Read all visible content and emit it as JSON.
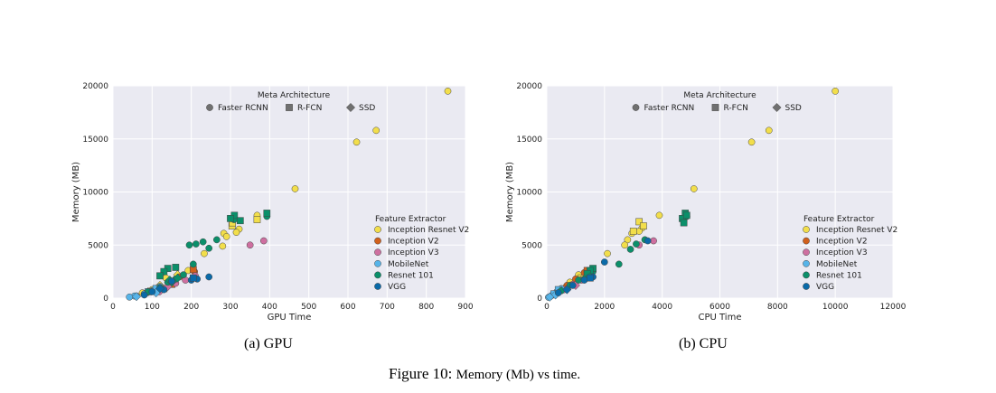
{
  "colors": {
    "panel_bg": "#EAEAF2",
    "grid": "#FFFFFF",
    "Inception Resnet V2": "#F2DE4B",
    "Inception V2": "#D1601C",
    "Inception V3": "#CE6FA0",
    "MobileNet": "#56B4E9",
    "Resnet 101": "#0B8F6A",
    "VGG": "#0A6AA8",
    "meta_marker_gray": "#707070"
  },
  "captions": {
    "a": "(a) GPU",
    "b": "(b) CPU",
    "figure_prefix": "Figure 10:",
    "figure_text": "Memory (Mb) vs time."
  },
  "chart_data": [
    {
      "type": "scatter",
      "panel": "gpu",
      "xlabel": "GPU Time",
      "ylabel": "Memory (MB)",
      "xlim": [
        0,
        900
      ],
      "ylim": [
        0,
        20000
      ],
      "xticks": [
        0,
        100,
        200,
        300,
        400,
        500,
        600,
        700,
        800,
        900
      ],
      "yticks": [
        0,
        5000,
        10000,
        15000,
        20000
      ],
      "grid": true,
      "meta_legend": {
        "title": "Meta Architecture",
        "placement": "top-center",
        "entries": [
          {
            "label": "Faster RCNN",
            "marker": "circle"
          },
          {
            "label": "R-FCN",
            "marker": "square"
          },
          {
            "label": "SSD",
            "marker": "diamond"
          }
        ]
      },
      "feature_legend": {
        "title": "Feature Extractor",
        "placement": "right",
        "entries": [
          "Inception Resnet V2",
          "Inception V2",
          "Inception V3",
          "MobileNet",
          "Resnet 101",
          "VGG"
        ]
      },
      "series": [
        {
          "name": "Inception Resnet V2",
          "points": [
            {
              "x": 855,
              "y": 19500,
              "m": "circle"
            },
            {
              "x": 672,
              "y": 15800,
              "m": "circle"
            },
            {
              "x": 622,
              "y": 14700,
              "m": "circle"
            },
            {
              "x": 465,
              "y": 10300,
              "m": "circle"
            },
            {
              "x": 368,
              "y": 7800,
              "m": "circle"
            },
            {
              "x": 322,
              "y": 6500,
              "m": "circle"
            },
            {
              "x": 315,
              "y": 6200,
              "m": "circle"
            },
            {
              "x": 283,
              "y": 6100,
              "m": "circle"
            },
            {
              "x": 290,
              "y": 5800,
              "m": "circle"
            },
            {
              "x": 280,
              "y": 4900,
              "m": "circle"
            },
            {
              "x": 233,
              "y": 4200,
              "m": "circle"
            },
            {
              "x": 192,
              "y": 2600,
              "m": "circle"
            },
            {
              "x": 135,
              "y": 1900,
              "m": "circle"
            },
            {
              "x": 100,
              "y": 800,
              "m": "circle"
            },
            {
              "x": 75,
              "y": 500,
              "m": "circle"
            },
            {
              "x": 304,
              "y": 6800,
              "m": "square"
            },
            {
              "x": 368,
              "y": 7400,
              "m": "square"
            },
            {
              "x": 305,
              "y": 7100,
              "m": "square"
            },
            {
              "x": 150,
              "y": 1500,
              "m": "square"
            },
            {
              "x": 130,
              "y": 900,
              "m": "square"
            },
            {
              "x": 165,
              "y": 2200,
              "m": "diamond"
            },
            {
              "x": 120,
              "y": 1200,
              "m": "diamond"
            }
          ]
        },
        {
          "name": "Inception V2",
          "points": [
            {
              "x": 208,
              "y": 2500,
              "m": "circle"
            },
            {
              "x": 170,
              "y": 2000,
              "m": "circle"
            },
            {
              "x": 140,
              "y": 1500,
              "m": "circle"
            },
            {
              "x": 100,
              "y": 700,
              "m": "circle"
            },
            {
              "x": 80,
              "y": 400,
              "m": "circle"
            },
            {
              "x": 60,
              "y": 200,
              "m": "circle"
            },
            {
              "x": 205,
              "y": 2700,
              "m": "square"
            },
            {
              "x": 150,
              "y": 1300,
              "m": "square"
            },
            {
              "x": 90,
              "y": 600,
              "m": "diamond"
            }
          ]
        },
        {
          "name": "Inception V3",
          "points": [
            {
              "x": 385,
              "y": 5400,
              "m": "circle"
            },
            {
              "x": 350,
              "y": 5000,
              "m": "circle"
            },
            {
              "x": 210,
              "y": 2100,
              "m": "circle"
            },
            {
              "x": 185,
              "y": 1700,
              "m": "circle"
            },
            {
              "x": 160,
              "y": 1400,
              "m": "circle"
            },
            {
              "x": 130,
              "y": 900,
              "m": "circle"
            },
            {
              "x": 118,
              "y": 600,
              "m": "circle"
            },
            {
              "x": 140,
              "y": 1100,
              "m": "diamond"
            }
          ]
        },
        {
          "name": "MobileNet",
          "points": [
            {
              "x": 120,
              "y": 1100,
              "m": "circle"
            },
            {
              "x": 100,
              "y": 700,
              "m": "circle"
            },
            {
              "x": 80,
              "y": 400,
              "m": "circle"
            },
            {
              "x": 55,
              "y": 200,
              "m": "circle"
            },
            {
              "x": 42,
              "y": 100,
              "m": "circle"
            },
            {
              "x": 110,
              "y": 900,
              "m": "square"
            },
            {
              "x": 90,
              "y": 600,
              "m": "square"
            },
            {
              "x": 110,
              "y": 500,
              "m": "diamond"
            },
            {
              "x": 60,
              "y": 150,
              "m": "diamond"
            }
          ]
        },
        {
          "name": "Resnet 101",
          "points": [
            {
              "x": 393,
              "y": 7700,
              "m": "circle"
            },
            {
              "x": 309,
              "y": 7400,
              "m": "circle"
            },
            {
              "x": 265,
              "y": 5500,
              "m": "circle"
            },
            {
              "x": 245,
              "y": 4700,
              "m": "circle"
            },
            {
              "x": 230,
              "y": 5300,
              "m": "circle"
            },
            {
              "x": 212,
              "y": 5100,
              "m": "circle"
            },
            {
              "x": 195,
              "y": 5000,
              "m": "circle"
            },
            {
              "x": 205,
              "y": 3200,
              "m": "circle"
            },
            {
              "x": 180,
              "y": 2200,
              "m": "circle"
            },
            {
              "x": 160,
              "y": 1800,
              "m": "circle"
            },
            {
              "x": 140,
              "y": 1500,
              "m": "circle"
            },
            {
              "x": 120,
              "y": 1000,
              "m": "circle"
            },
            {
              "x": 90,
              "y": 600,
              "m": "circle"
            },
            {
              "x": 310,
              "y": 7800,
              "m": "square"
            },
            {
              "x": 325,
              "y": 7300,
              "m": "square"
            },
            {
              "x": 393,
              "y": 8000,
              "m": "square"
            },
            {
              "x": 300,
              "y": 7500,
              "m": "square"
            },
            {
              "x": 160,
              "y": 2900,
              "m": "square"
            },
            {
              "x": 140,
              "y": 2800,
              "m": "square"
            },
            {
              "x": 130,
              "y": 2500,
              "m": "square"
            },
            {
              "x": 120,
              "y": 2100,
              "m": "square"
            },
            {
              "x": 165,
              "y": 1900,
              "m": "diamond"
            },
            {
              "x": 150,
              "y": 1500,
              "m": "diamond"
            },
            {
              "x": 145,
              "y": 1700,
              "m": "diamond"
            }
          ]
        },
        {
          "name": "VGG",
          "points": [
            {
              "x": 245,
              "y": 2000,
              "m": "circle"
            },
            {
              "x": 215,
              "y": 1800,
              "m": "circle"
            },
            {
              "x": 200,
              "y": 1700,
              "m": "circle"
            },
            {
              "x": 150,
              "y": 1600,
              "m": "circle"
            },
            {
              "x": 130,
              "y": 800,
              "m": "circle"
            },
            {
              "x": 100,
              "y": 600,
              "m": "circle"
            },
            {
              "x": 80,
              "y": 300,
              "m": "circle"
            },
            {
              "x": 205,
              "y": 1900,
              "m": "square"
            },
            {
              "x": 120,
              "y": 900,
              "m": "diamond"
            }
          ]
        }
      ]
    },
    {
      "type": "scatter",
      "panel": "cpu",
      "xlabel": "CPU Time",
      "ylabel": "Memory (MB)",
      "xlim": [
        0,
        12000
      ],
      "ylim": [
        0,
        20000
      ],
      "xticks": [
        0,
        2000,
        4000,
        6000,
        8000,
        10000,
        12000
      ],
      "yticks": [
        0,
        5000,
        10000,
        15000,
        20000
      ],
      "grid": true,
      "meta_legend": {
        "title": "Meta Architecture",
        "placement": "top-center",
        "entries": [
          {
            "label": "Faster RCNN",
            "marker": "circle"
          },
          {
            "label": "R-FCN",
            "marker": "square"
          },
          {
            "label": "SSD",
            "marker": "diamond"
          }
        ]
      },
      "feature_legend": {
        "title": "Feature Extractor",
        "placement": "right",
        "entries": [
          "Inception Resnet V2",
          "Inception V2",
          "Inception V3",
          "MobileNet",
          "Resnet 101",
          "VGG"
        ]
      },
      "series": [
        {
          "name": "Inception Resnet V2",
          "points": [
            {
              "x": 10000,
              "y": 19500,
              "m": "circle"
            },
            {
              "x": 7700,
              "y": 15800,
              "m": "circle"
            },
            {
              "x": 7100,
              "y": 14700,
              "m": "circle"
            },
            {
              "x": 5100,
              "y": 10300,
              "m": "circle"
            },
            {
              "x": 3900,
              "y": 7800,
              "m": "circle"
            },
            {
              "x": 3300,
              "y": 6600,
              "m": "circle"
            },
            {
              "x": 3200,
              "y": 6300,
              "m": "circle"
            },
            {
              "x": 2950,
              "y": 6100,
              "m": "circle"
            },
            {
              "x": 2800,
              "y": 5500,
              "m": "circle"
            },
            {
              "x": 2700,
              "y": 5000,
              "m": "circle"
            },
            {
              "x": 2100,
              "y": 4200,
              "m": "circle"
            },
            {
              "x": 1100,
              "y": 2200,
              "m": "circle"
            },
            {
              "x": 800,
              "y": 1500,
              "m": "circle"
            },
            {
              "x": 500,
              "y": 700,
              "m": "circle"
            },
            {
              "x": 3200,
              "y": 7200,
              "m": "square"
            },
            {
              "x": 3350,
              "y": 6800,
              "m": "square"
            },
            {
              "x": 3000,
              "y": 6300,
              "m": "square"
            },
            {
              "x": 1200,
              "y": 1900,
              "m": "square"
            },
            {
              "x": 1300,
              "y": 2000,
              "m": "diamond"
            }
          ]
        },
        {
          "name": "Inception V2",
          "points": [
            {
              "x": 1300,
              "y": 2400,
              "m": "circle"
            },
            {
              "x": 1000,
              "y": 1800,
              "m": "circle"
            },
            {
              "x": 700,
              "y": 1200,
              "m": "circle"
            },
            {
              "x": 400,
              "y": 600,
              "m": "circle"
            },
            {
              "x": 200,
              "y": 300,
              "m": "circle"
            },
            {
              "x": 1400,
              "y": 2600,
              "m": "square"
            },
            {
              "x": 600,
              "y": 900,
              "m": "diamond"
            }
          ]
        },
        {
          "name": "Inception V3",
          "points": [
            {
              "x": 3700,
              "y": 5400,
              "m": "circle"
            },
            {
              "x": 3200,
              "y": 5000,
              "m": "circle"
            },
            {
              "x": 1500,
              "y": 2100,
              "m": "circle"
            },
            {
              "x": 1200,
              "y": 1700,
              "m": "circle"
            },
            {
              "x": 900,
              "y": 1300,
              "m": "circle"
            },
            {
              "x": 600,
              "y": 800,
              "m": "circle"
            },
            {
              "x": 1000,
              "y": 1200,
              "m": "diamond"
            }
          ]
        },
        {
          "name": "MobileNet",
          "points": [
            {
              "x": 500,
              "y": 900,
              "m": "circle"
            },
            {
              "x": 350,
              "y": 600,
              "m": "circle"
            },
            {
              "x": 200,
              "y": 300,
              "m": "circle"
            },
            {
              "x": 120,
              "y": 150,
              "m": "circle"
            },
            {
              "x": 60,
              "y": 80,
              "m": "circle"
            },
            {
              "x": 400,
              "y": 800,
              "m": "square"
            },
            {
              "x": 250,
              "y": 400,
              "m": "square"
            },
            {
              "x": 300,
              "y": 300,
              "m": "diamond"
            },
            {
              "x": 100,
              "y": 100,
              "m": "diamond"
            }
          ]
        },
        {
          "name": "Resnet 101",
          "points": [
            {
              "x": 4850,
              "y": 7700,
              "m": "circle"
            },
            {
              "x": 3400,
              "y": 5500,
              "m": "circle"
            },
            {
              "x": 3100,
              "y": 5100,
              "m": "circle"
            },
            {
              "x": 2900,
              "y": 4600,
              "m": "circle"
            },
            {
              "x": 2500,
              "y": 3200,
              "m": "circle"
            },
            {
              "x": 1600,
              "y": 2500,
              "m": "circle"
            },
            {
              "x": 1400,
              "y": 2200,
              "m": "circle"
            },
            {
              "x": 1100,
              "y": 1700,
              "m": "circle"
            },
            {
              "x": 800,
              "y": 1200,
              "m": "circle"
            },
            {
              "x": 500,
              "y": 700,
              "m": "circle"
            },
            {
              "x": 4800,
              "y": 8000,
              "m": "square"
            },
            {
              "x": 4700,
              "y": 7500,
              "m": "square"
            },
            {
              "x": 4750,
              "y": 7100,
              "m": "square"
            },
            {
              "x": 4850,
              "y": 7800,
              "m": "square"
            },
            {
              "x": 1600,
              "y": 2800,
              "m": "square"
            },
            {
              "x": 1500,
              "y": 2600,
              "m": "square"
            },
            {
              "x": 1400,
              "y": 2300,
              "m": "square"
            },
            {
              "x": 1500,
              "y": 2000,
              "m": "diamond"
            },
            {
              "x": 1300,
              "y": 1800,
              "m": "diamond"
            }
          ]
        },
        {
          "name": "VGG",
          "points": [
            {
              "x": 3500,
              "y": 5400,
              "m": "circle"
            },
            {
              "x": 2000,
              "y": 3400,
              "m": "circle"
            },
            {
              "x": 1600,
              "y": 2000,
              "m": "circle"
            },
            {
              "x": 1300,
              "y": 1700,
              "m": "circle"
            },
            {
              "x": 900,
              "y": 1200,
              "m": "circle"
            },
            {
              "x": 400,
              "y": 500,
              "m": "circle"
            },
            {
              "x": 1500,
              "y": 1900,
              "m": "square"
            },
            {
              "x": 700,
              "y": 800,
              "m": "diamond"
            }
          ]
        }
      ]
    }
  ]
}
